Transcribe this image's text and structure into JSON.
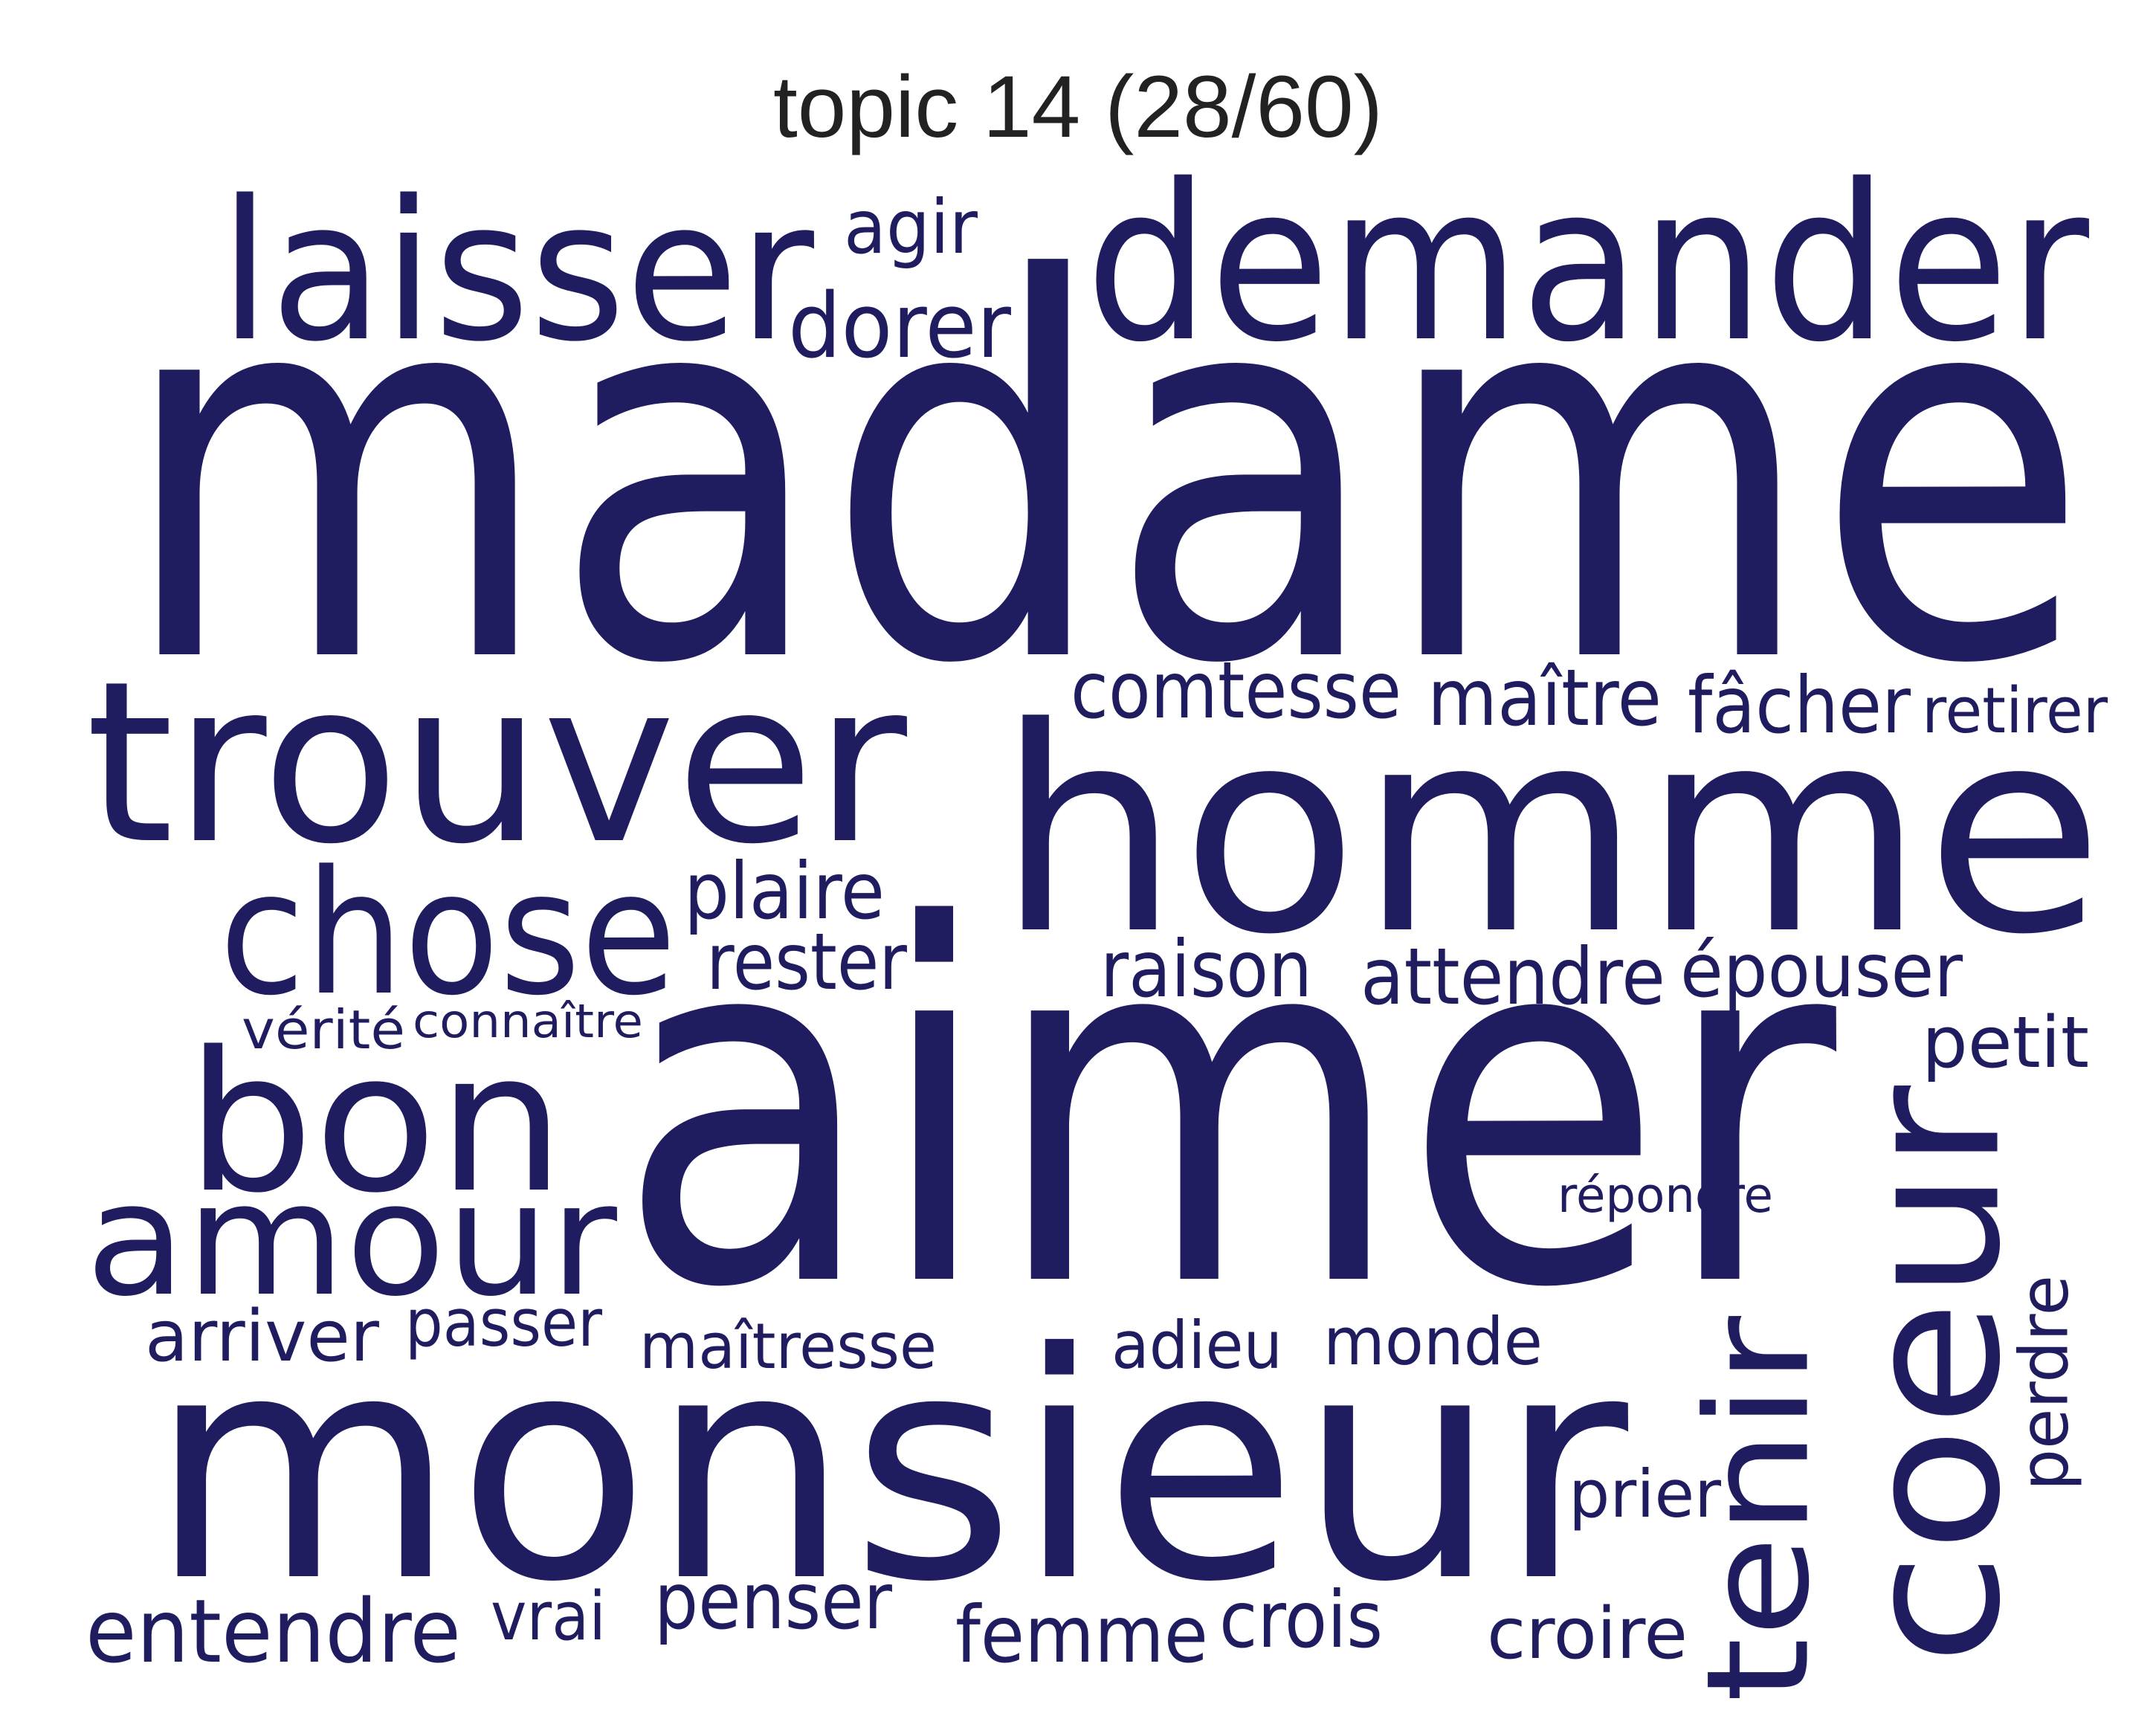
{
  "title": "topic 14 (28/60)",
  "word_color": "#201c60",
  "words": [
    {
      "text": "madame"
    },
    {
      "text": "aimer"
    },
    {
      "text": "monsieur"
    },
    {
      "text": "homme"
    },
    {
      "text": "demander"
    },
    {
      "text": "trouver"
    },
    {
      "text": "laisser"
    },
    {
      "text": "coeur"
    },
    {
      "text": "chose"
    },
    {
      "text": "bon"
    },
    {
      "text": "amour"
    },
    {
      "text": "tenir"
    },
    {
      "text": "dorer"
    },
    {
      "text": "agir"
    },
    {
      "text": "comtesse"
    },
    {
      "text": "maître"
    },
    {
      "text": "fâcher"
    },
    {
      "text": "retirer"
    },
    {
      "text": "plaire"
    },
    {
      "text": "rester"
    },
    {
      "text": "raison"
    },
    {
      "text": "attendre"
    },
    {
      "text": "épouser"
    },
    {
      "text": "vérité"
    },
    {
      "text": "connaître"
    },
    {
      "text": "petit"
    },
    {
      "text": "répondre"
    },
    {
      "text": "perdre"
    },
    {
      "text": "arriver"
    },
    {
      "text": "passer"
    },
    {
      "text": "maîtresse"
    },
    {
      "text": "adieu"
    },
    {
      "text": "monde"
    },
    {
      "text": "prier"
    },
    {
      "text": "entendre"
    },
    {
      "text": "vrai"
    },
    {
      "text": "penser"
    },
    {
      "text": "femme"
    },
    {
      "text": "crois"
    },
    {
      "text": "croire"
    }
  ]
}
